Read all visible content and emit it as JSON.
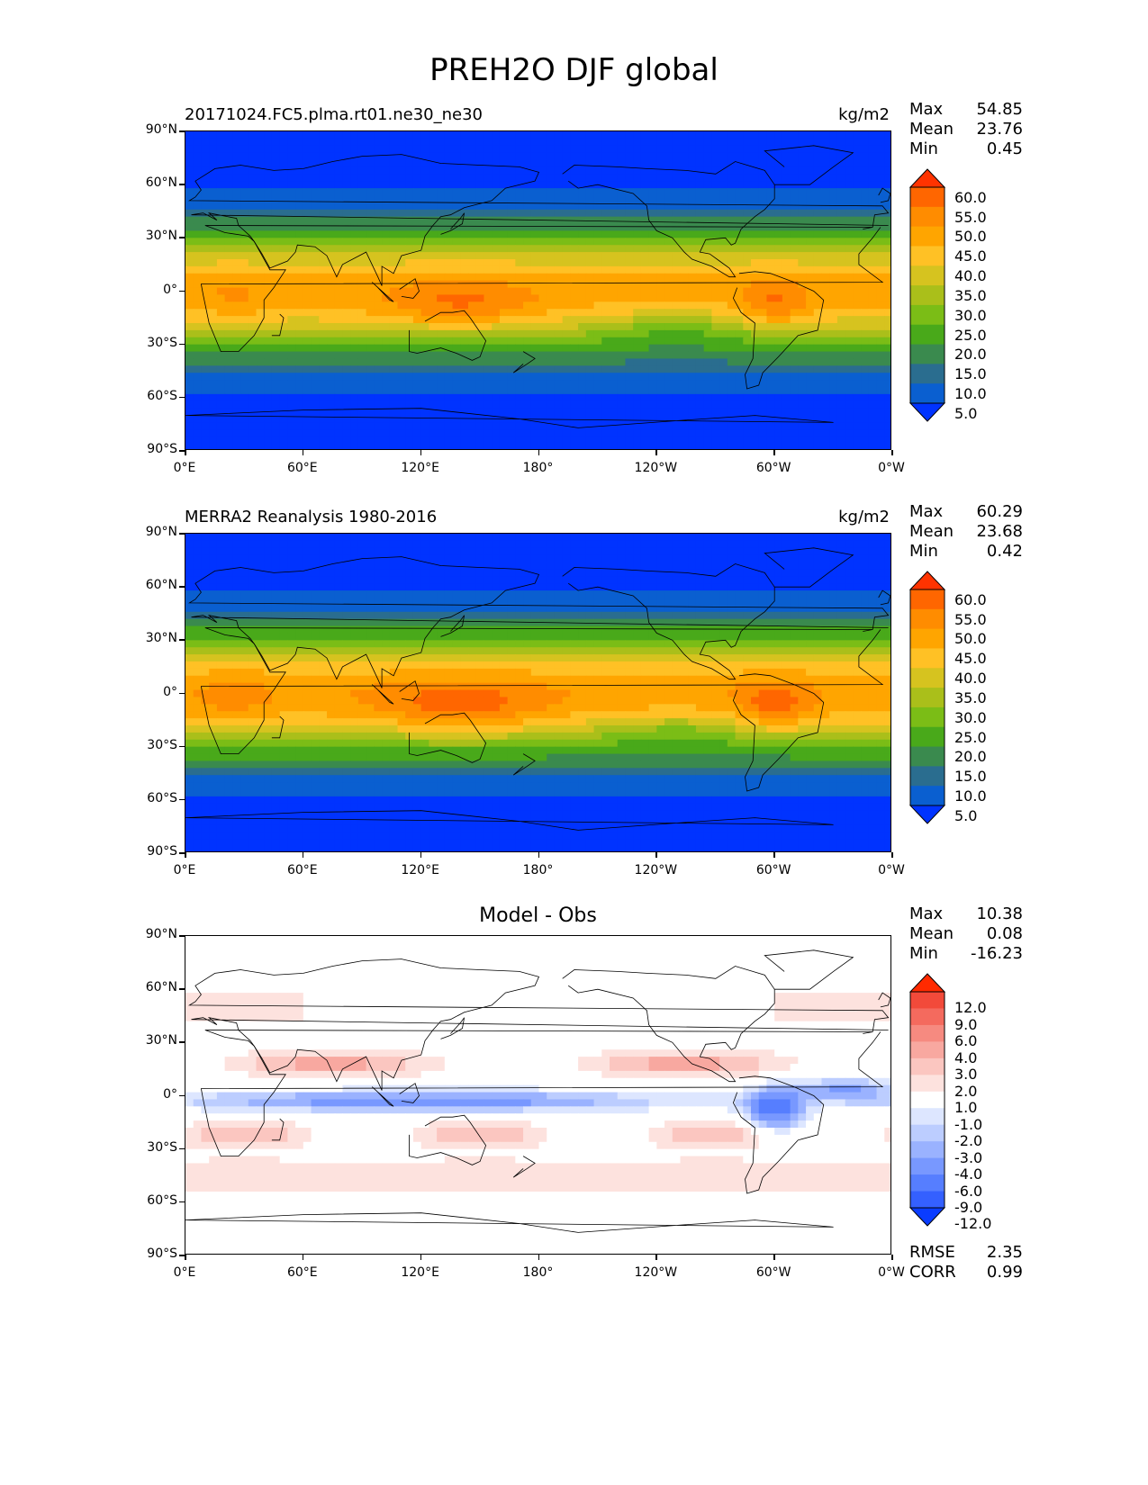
{
  "suptitle": "PREH2O DJF global",
  "panels": [
    {
      "id": "model",
      "title_left": "20171024.FC5.plma.rt01.ne30_ne30",
      "title_center": "",
      "units": "kg/m2",
      "stats": {
        "max_label": "Max",
        "max": "54.85",
        "mean_label": "Mean",
        "mean": "23.76",
        "min_label": "Min",
        "min": "0.45"
      },
      "colorbar": {
        "labels": [
          "60.0",
          "55.0",
          "50.0",
          "45.0",
          "40.0",
          "35.0",
          "30.0",
          "25.0",
          "20.0",
          "15.0",
          "10.0",
          "5.0"
        ],
        "colors": [
          "#ff3300",
          "#ff6600",
          "#ff8c00",
          "#ffa500",
          "#ffc125",
          "#d6c31f",
          "#aabf1a",
          "#7bbd16",
          "#49a91a",
          "#3a8a4e",
          "#2a6d8f",
          "#0a5fd0",
          "#0033ff"
        ]
      }
    },
    {
      "id": "obs",
      "title_left": "MERRA2 Reanalysis 1980-2016",
      "title_center": "",
      "units": "kg/m2",
      "stats": {
        "max_label": "Max",
        "max": "60.29",
        "mean_label": "Mean",
        "mean": "23.68",
        "min_label": "Min",
        "min": "0.42"
      },
      "colorbar": {
        "labels": [
          "60.0",
          "55.0",
          "50.0",
          "45.0",
          "40.0",
          "35.0",
          "30.0",
          "25.0",
          "20.0",
          "15.0",
          "10.0",
          "5.0"
        ],
        "colors": [
          "#ff3300",
          "#ff6600",
          "#ff8c00",
          "#ffa500",
          "#ffc125",
          "#d6c31f",
          "#aabf1a",
          "#7bbd16",
          "#49a91a",
          "#3a8a4e",
          "#2a6d8f",
          "#0a5fd0",
          "#0033ff"
        ]
      }
    },
    {
      "id": "diff",
      "title_left": "",
      "title_center": "Model - Obs",
      "units": "",
      "stats": {
        "max_label": "Max",
        "max": "10.38",
        "mean_label": "Mean",
        "mean": "0.08",
        "min_label": "Min",
        "min": "-16.23"
      },
      "metrics": {
        "rmse_label": "RMSE",
        "rmse": "2.35",
        "corr_label": "CORR",
        "corr": "0.99"
      },
      "colorbar": {
        "labels": [
          "12.0",
          "9.0",
          "6.0",
          "4.0",
          "3.0",
          "2.0",
          "1.0",
          "-1.0",
          "-2.0",
          "-3.0",
          "-4.0",
          "-6.0",
          "-9.0",
          "-12.0"
        ],
        "colors": [
          "#ff2a00",
          "#f24a3a",
          "#f46a5e",
          "#f68a80",
          "#f8a8a0",
          "#fbc6c0",
          "#fde2de",
          "#ffffff",
          "#dde6ff",
          "#bccdff",
          "#9ab2ff",
          "#7898ff",
          "#567eff",
          "#3460ff",
          "#0a3cff"
        ]
      }
    }
  ],
  "axes": {
    "y_ticks": [
      "90°N",
      "60°N",
      "30°N",
      "0°",
      "30°S",
      "60°S",
      "90°S"
    ],
    "x_ticks": [
      "0°E",
      "60°E",
      "120°E",
      "180°",
      "120°W",
      "60°W",
      "0°W"
    ]
  },
  "chart_data": [
    {
      "type": "heatmap",
      "title": "20171024.FC5.plma.rt01.ne30_ne30",
      "variable": "PREH2O",
      "units": "kg/m2",
      "lon_ticks": [
        "0°E",
        "60°E",
        "120°E",
        "180°",
        "120°W",
        "60°W",
        "0°W"
      ],
      "lat_ticks": [
        "90°N",
        "60°N",
        "30°N",
        "0°",
        "30°S",
        "60°S",
        "90°S"
      ],
      "zlim": [
        5.0,
        60.0
      ],
      "levels": [
        5.0,
        10.0,
        15.0,
        20.0,
        25.0,
        30.0,
        35.0,
        40.0,
        45.0,
        50.0,
        55.0,
        60.0
      ],
      "max": 54.85,
      "mean": 23.76,
      "min": 0.45
    },
    {
      "type": "heatmap",
      "title": "MERRA2 Reanalysis 1980-2016",
      "variable": "PREH2O",
      "units": "kg/m2",
      "lon_ticks": [
        "0°E",
        "60°E",
        "120°E",
        "180°",
        "120°W",
        "60°W",
        "0°W"
      ],
      "lat_ticks": [
        "90°N",
        "60°N",
        "30°N",
        "0°",
        "30°S",
        "60°S",
        "90°S"
      ],
      "zlim": [
        5.0,
        60.0
      ],
      "levels": [
        5.0,
        10.0,
        15.0,
        20.0,
        25.0,
        30.0,
        35.0,
        40.0,
        45.0,
        50.0,
        55.0,
        60.0
      ],
      "max": 60.29,
      "mean": 23.68,
      "min": 0.42
    },
    {
      "type": "heatmap",
      "title": "Model - Obs",
      "lon_ticks": [
        "0°E",
        "60°E",
        "120°E",
        "180°",
        "120°W",
        "60°W",
        "0°W"
      ],
      "lat_ticks": [
        "90°N",
        "60°N",
        "30°N",
        "0°",
        "30°S",
        "60°S",
        "90°S"
      ],
      "zlim": [
        -12.0,
        12.0
      ],
      "levels": [
        -12.0,
        -9.0,
        -6.0,
        -4.0,
        -3.0,
        -2.0,
        -1.0,
        1.0,
        2.0,
        3.0,
        4.0,
        6.0,
        9.0,
        12.0
      ],
      "max": 10.38,
      "mean": 0.08,
      "min": -16.23,
      "rmse": 2.35,
      "corr": 0.99
    }
  ]
}
